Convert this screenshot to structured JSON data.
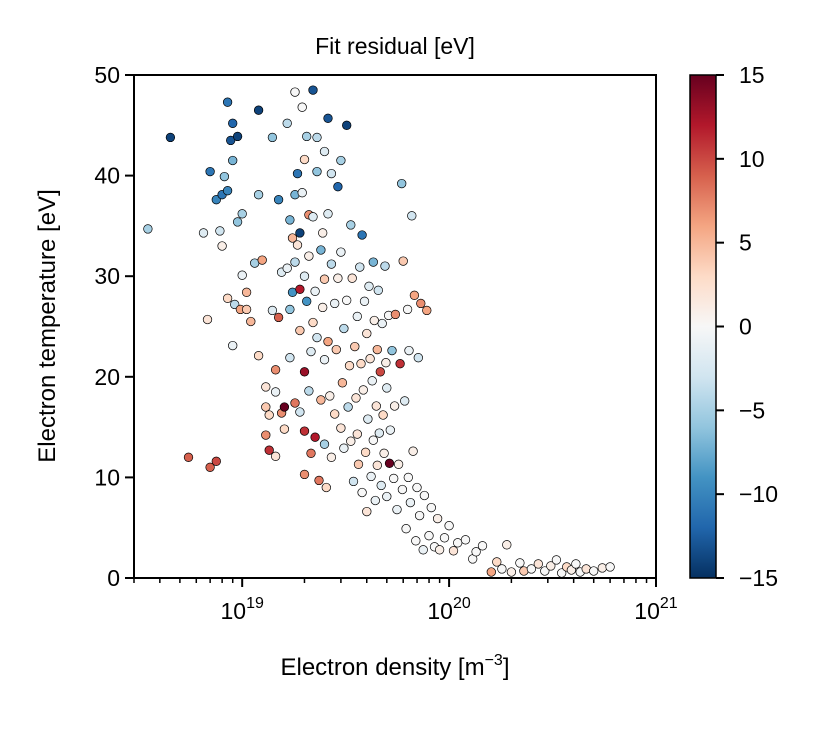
{
  "chart_data": {
    "type": "scatter",
    "title": "Fit residual [eV]",
    "xlabel": "Electron density [m",
    "xlabel_exponent": "−3",
    "xlabel_close": "]",
    "ylabel": "Electron temperature [eV]",
    "x_scale": "log",
    "xlim": [
      3e+18,
      1e+21
    ],
    "ylim": [
      0,
      50
    ],
    "x_ticks": [
      {
        "value": 1e+19,
        "base": "10",
        "exp": "19"
      },
      {
        "value": 1e+20,
        "base": "10",
        "exp": "20"
      },
      {
        "value": 1e+21,
        "base": "10",
        "exp": "21"
      }
    ],
    "y_ticks": [
      {
        "value": 0,
        "label": "0"
      },
      {
        "value": 10,
        "label": "10"
      },
      {
        "value": 20,
        "label": "20"
      },
      {
        "value": 30,
        "label": "30"
      },
      {
        "value": 40,
        "label": "40"
      },
      {
        "value": 50,
        "label": "50"
      }
    ],
    "colorbar": {
      "colormap": "RdBu_r",
      "range": [
        -15,
        15
      ],
      "ticks": [
        {
          "value": 15,
          "label": "15"
        },
        {
          "value": 10,
          "label": "10"
        },
        {
          "value": 5,
          "label": "5"
        },
        {
          "value": 0,
          "label": "0"
        },
        {
          "value": -5,
          "label": "−5"
        },
        {
          "value": -10,
          "label": "−10"
        },
        {
          "value": -15,
          "label": "−15"
        }
      ],
      "stops": [
        "#67001f",
        "#b2182b",
        "#d6604d",
        "#f4a582",
        "#fddbc7",
        "#f7f7f7",
        "#d1e5f0",
        "#92c5de",
        "#4393c3",
        "#2166ac",
        "#053061"
      ]
    },
    "points": [
      [
        3.5e+18,
        34.7,
        -5
      ],
      [
        4.5e+18,
        43.8,
        -14
      ],
      [
        5.5e+18,
        12.0,
        9
      ],
      [
        6.5e+18,
        34.3,
        -2
      ],
      [
        6.8e+18,
        25.7,
        2
      ],
      [
        7e+18,
        40.4,
        -11
      ],
      [
        7e+18,
        11.0,
        9
      ],
      [
        7.5e+18,
        11.6,
        10
      ],
      [
        7.5e+18,
        37.6,
        -10
      ],
      [
        7.8e+18,
        34.5,
        -3
      ],
      [
        8e+18,
        33.0,
        1
      ],
      [
        8e+18,
        38.1,
        -11
      ],
      [
        8.2e+18,
        39.9,
        -6
      ],
      [
        8.5e+18,
        47.3,
        -11
      ],
      [
        8.5e+18,
        38.5,
        -10
      ],
      [
        8.5e+18,
        27.8,
        3
      ],
      [
        8.8e+18,
        43.5,
        -13
      ],
      [
        9e+18,
        45.2,
        -12
      ],
      [
        9e+18,
        41.5,
        -7
      ],
      [
        9e+18,
        23.1,
        -1
      ],
      [
        9.2e+18,
        27.2,
        -4
      ],
      [
        9.5e+18,
        35.4,
        -6
      ],
      [
        9.5e+18,
        43.9,
        -14
      ],
      [
        9.8e+18,
        26.7,
        6
      ],
      [
        1e+19,
        30.1,
        -1
      ],
      [
        1e+19,
        36.2,
        -5
      ],
      [
        1.05e+19,
        26.7,
        4
      ],
      [
        1.05e+19,
        28.4,
        5
      ],
      [
        1.1e+19,
        25.5,
        5
      ],
      [
        1.15e+19,
        31.3,
        -5
      ],
      [
        1.2e+19,
        46.5,
        -14
      ],
      [
        1.2e+19,
        38.1,
        -5
      ],
      [
        1.2e+19,
        22.1,
        3
      ],
      [
        1.25e+19,
        31.6,
        6
      ],
      [
        1.3e+19,
        19.0,
        2
      ],
      [
        1.3e+19,
        17.0,
        4
      ],
      [
        1.3e+19,
        14.2,
        7
      ],
      [
        1.35e+19,
        16.2,
        3
      ],
      [
        1.35e+19,
        12.7,
        11
      ],
      [
        1.4e+19,
        43.8,
        -6
      ],
      [
        1.4e+19,
        26.6,
        -2
      ],
      [
        1.45e+19,
        20.7,
        7
      ],
      [
        1.45e+19,
        18.5,
        -1
      ],
      [
        1.45e+19,
        12.1,
        2
      ],
      [
        1.5e+19,
        37.6,
        -10
      ],
      [
        1.5e+19,
        25.9,
        9
      ],
      [
        1.55e+19,
        30.4,
        -2
      ],
      [
        1.55e+19,
        16.4,
        7
      ],
      [
        1.6e+19,
        17.0,
        15
      ],
      [
        1.6e+19,
        14.8,
        3
      ],
      [
        1.65e+19,
        45.2,
        -4
      ],
      [
        1.65e+19,
        30.8,
        -1
      ],
      [
        1.7e+19,
        35.6,
        -7
      ],
      [
        1.7e+19,
        26.7,
        -6
      ],
      [
        1.7e+19,
        21.9,
        -3
      ],
      [
        1.75e+19,
        33.8,
        5
      ],
      [
        1.75e+19,
        28.4,
        -9
      ],
      [
        1.8e+19,
        48.3,
        0
      ],
      [
        1.8e+19,
        38.1,
        -7
      ],
      [
        1.8e+19,
        31.4,
        -4
      ],
      [
        1.8e+19,
        17.4,
        8
      ],
      [
        1.85e+19,
        40.2,
        -11
      ],
      [
        1.85e+19,
        33.1,
        2
      ],
      [
        1.9e+19,
        34.3,
        -14
      ],
      [
        1.9e+19,
        28.7,
        12
      ],
      [
        1.9e+19,
        24.6,
        4
      ],
      [
        1.9e+19,
        16.5,
        -3
      ],
      [
        1.95e+19,
        46.8,
        0
      ],
      [
        1.95e+19,
        38.3,
        -1
      ],
      [
        2e+19,
        41.6,
        3
      ],
      [
        2e+19,
        30.0,
        -2
      ],
      [
        2e+19,
        20.5,
        13
      ],
      [
        2e+19,
        14.6,
        11
      ],
      [
        2e+19,
        10.3,
        7
      ],
      [
        2.05e+19,
        43.9,
        -5
      ],
      [
        2.05e+19,
        27.5,
        -9
      ],
      [
        2.1e+19,
        36.1,
        7
      ],
      [
        2.1e+19,
        32.0,
        1
      ],
      [
        2.1e+19,
        18.6,
        -4
      ],
      [
        2.15e+19,
        22.5,
        -2
      ],
      [
        2.15e+19,
        12.4,
        8
      ],
      [
        2.2e+19,
        48.5,
        -13
      ],
      [
        2.2e+19,
        35.9,
        -2
      ],
      [
        2.2e+19,
        25.4,
        3
      ],
      [
        2.25e+19,
        28.5,
        -1
      ],
      [
        2.25e+19,
        14.0,
        12
      ],
      [
        2.3e+19,
        43.8,
        -4
      ],
      [
        2.3e+19,
        40.4,
        -6
      ],
      [
        2.3e+19,
        23.9,
        -3
      ],
      [
        2.35e+19,
        9.7,
        8
      ],
      [
        2.4e+19,
        32.6,
        -7
      ],
      [
        2.4e+19,
        17.7,
        5
      ],
      [
        2.45e+19,
        34.3,
        1
      ],
      [
        2.45e+19,
        26.9,
        1
      ],
      [
        2.5e+19,
        42.4,
        -2
      ],
      [
        2.5e+19,
        29.7,
        4
      ],
      [
        2.5e+19,
        21.7,
        -1
      ],
      [
        2.5e+19,
        13.3,
        -5
      ],
      [
        2.55e+19,
        9.0,
        3
      ],
      [
        2.6e+19,
        45.7,
        -13
      ],
      [
        2.6e+19,
        36.2,
        -2
      ],
      [
        2.6e+19,
        23.5,
        6
      ],
      [
        2.65e+19,
        18.1,
        1
      ],
      [
        2.7e+19,
        40.2,
        -3
      ],
      [
        2.7e+19,
        31.2,
        -4
      ],
      [
        2.7e+19,
        12.0,
        1
      ],
      [
        2.8e+19,
        27.3,
        -1
      ],
      [
        2.8e+19,
        16.3,
        3
      ],
      [
        2.85e+19,
        22.7,
        4
      ],
      [
        2.9e+19,
        38.9,
        -12
      ],
      [
        2.9e+19,
        29.8,
        1
      ],
      [
        3e+19,
        41.5,
        -5
      ],
      [
        3e+19,
        32.4,
        -1
      ],
      [
        3e+19,
        14.9,
        2
      ],
      [
        3.05e+19,
        19.4,
        5
      ],
      [
        3.1e+19,
        24.8,
        -4
      ],
      [
        3.1e+19,
        12.9,
        -1
      ],
      [
        3.2e+19,
        45.0,
        -14
      ],
      [
        3.2e+19,
        27.6,
        0
      ],
      [
        3.25e+19,
        17.0,
        -4
      ],
      [
        3.3e+19,
        21.1,
        3
      ],
      [
        3.35e+19,
        35.1,
        -5
      ],
      [
        3.35e+19,
        13.6,
        1
      ],
      [
        3.4e+19,
        29.8,
        2
      ],
      [
        3.45e+19,
        9.6,
        -3
      ],
      [
        3.5e+19,
        23.0,
        4
      ],
      [
        3.55e+19,
        17.9,
        2
      ],
      [
        3.6e+19,
        26.0,
        -1
      ],
      [
        3.6e+19,
        14.3,
        2
      ],
      [
        3.65e+19,
        11.3,
        4
      ],
      [
        3.7e+19,
        30.9,
        -3
      ],
      [
        3.75e+19,
        21.3,
        3
      ],
      [
        3.8e+19,
        34.1,
        -11
      ],
      [
        3.8e+19,
        8.5,
        0
      ],
      [
        3.85e+19,
        18.7,
        1
      ],
      [
        3.9e+19,
        27.5,
        -1
      ],
      [
        3.95e+19,
        12.5,
        3
      ],
      [
        4e+19,
        24.3,
        2
      ],
      [
        4e+19,
        6.6,
        2
      ],
      [
        4.05e+19,
        15.8,
        -2
      ],
      [
        4.1e+19,
        29.0,
        -2
      ],
      [
        4.15e+19,
        21.8,
        2
      ],
      [
        4.2e+19,
        10.1,
        -1
      ],
      [
        4.25e+19,
        19.6,
        -1
      ],
      [
        4.3e+19,
        31.4,
        -7
      ],
      [
        4.3e+19,
        13.7,
        0
      ],
      [
        4.35e+19,
        25.6,
        1
      ],
      [
        4.4e+19,
        7.7,
        -1
      ],
      [
        4.45e+19,
        17.1,
        2
      ],
      [
        4.5e+19,
        22.7,
        5
      ],
      [
        4.5e+19,
        11.2,
        2
      ],
      [
        4.55e+19,
        28.6,
        -3
      ],
      [
        4.6e+19,
        14.4,
        -2
      ],
      [
        4.65e+19,
        20.5,
        10
      ],
      [
        4.7e+19,
        9.2,
        -2
      ],
      [
        4.75e+19,
        25.3,
        -1
      ],
      [
        4.8e+19,
        16.2,
        3
      ],
      [
        4.85e+19,
        12.4,
        1
      ],
      [
        4.9e+19,
        31.0,
        -4
      ],
      [
        4.95e+19,
        21.4,
        1
      ],
      [
        5e+19,
        8.1,
        -1
      ],
      [
        5e+19,
        18.9,
        -2
      ],
      [
        5.1e+19,
        26.1,
        0
      ],
      [
        5.15e+19,
        11.4,
        15
      ],
      [
        5.2e+19,
        14.7,
        -1
      ],
      [
        5.3e+19,
        22.6,
        -6
      ],
      [
        5.4e+19,
        9.9,
        0
      ],
      [
        5.45e+19,
        17.1,
        1
      ],
      [
        5.5e+19,
        26.2,
        7
      ],
      [
        5.6e+19,
        6.8,
        -1
      ],
      [
        5.7e+19,
        11.3,
        1
      ],
      [
        5.8e+19,
        21.3,
        11
      ],
      [
        5.9e+19,
        39.2,
        -6
      ],
      [
        5.95e+19,
        8.8,
        0
      ],
      [
        6e+19,
        31.5,
        4
      ],
      [
        6.1e+19,
        17.6,
        -2
      ],
      [
        6.2e+19,
        4.9,
        0
      ],
      [
        6.3e+19,
        26.7,
        0
      ],
      [
        6.35e+19,
        10.0,
        0
      ],
      [
        6.4e+19,
        22.6,
        -1
      ],
      [
        6.5e+19,
        7.5,
        -1
      ],
      [
        6.6e+19,
        36.0,
        -3
      ],
      [
        6.7e+19,
        12.6,
        1
      ],
      [
        6.8e+19,
        28.1,
        6
      ],
      [
        6.9e+19,
        3.7,
        0
      ],
      [
        7e+19,
        9.0,
        0
      ],
      [
        7.1e+19,
        21.9,
        -3
      ],
      [
        7.2e+19,
        6.2,
        0
      ],
      [
        7.3e+19,
        27.3,
        7
      ],
      [
        7.5e+19,
        2.8,
        -1
      ],
      [
        7.6e+19,
        8.2,
        0
      ],
      [
        7.8e+19,
        26.6,
        6
      ],
      [
        8e+19,
        4.2,
        0
      ],
      [
        8.2e+19,
        7.0,
        0
      ],
      [
        8.5e+19,
        3.1,
        0
      ],
      [
        8.8e+19,
        5.9,
        1
      ],
      [
        9e+19,
        2.8,
        1
      ],
      [
        9.5e+19,
        4.0,
        0
      ],
      [
        1e+20,
        5.2,
        0
      ],
      [
        1.05e+20,
        2.7,
        2
      ],
      [
        1.1e+20,
        3.5,
        0
      ],
      [
        1.2e+20,
        3.8,
        0
      ],
      [
        1.3e+20,
        1.9,
        0
      ],
      [
        1.35e+20,
        2.6,
        0
      ],
      [
        1.45e+20,
        3.2,
        0
      ],
      [
        1.6e+20,
        0.6,
        6
      ],
      [
        1.7e+20,
        1.6,
        3
      ],
      [
        1.8e+20,
        0.9,
        0
      ],
      [
        1.9e+20,
        3.3,
        1
      ],
      [
        2e+20,
        0.6,
        1
      ],
      [
        2.2e+20,
        1.5,
        0
      ],
      [
        2.3e+20,
        0.7,
        4
      ],
      [
        2.5e+20,
        0.9,
        0
      ],
      [
        2.7e+20,
        1.4,
        2
      ],
      [
        2.9e+20,
        0.7,
        0
      ],
      [
        3.1e+20,
        1.2,
        1
      ],
      [
        3.3e+20,
        1.8,
        0
      ],
      [
        3.5e+20,
        0.5,
        0
      ],
      [
        3.7e+20,
        1.1,
        3
      ],
      [
        3.9e+20,
        0.8,
        1
      ],
      [
        4.1e+20,
        1.4,
        0
      ],
      [
        4.3e+20,
        0.6,
        0
      ],
      [
        4.6e+20,
        0.9,
        2
      ],
      [
        5e+20,
        0.7,
        0
      ],
      [
        5.5e+20,
        1.0,
        1
      ],
      [
        6e+20,
        1.1,
        0
      ]
    ]
  }
}
